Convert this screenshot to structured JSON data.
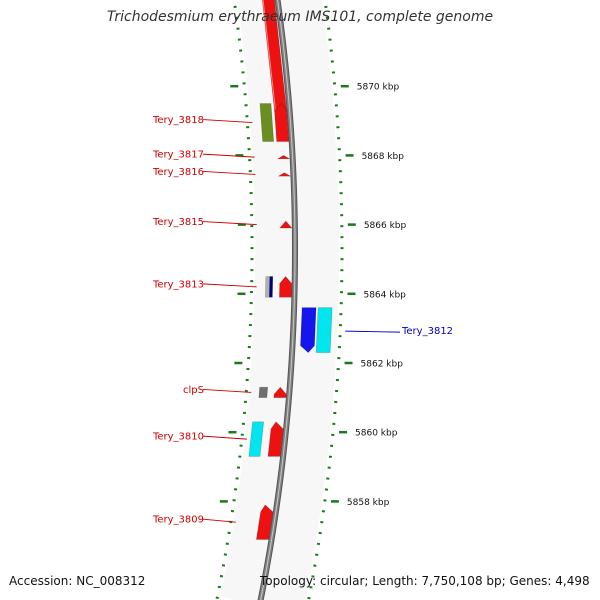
{
  "header": {
    "title": "Trichodesmium erythraeum IMS101, complete genome"
  },
  "footer": {
    "accession": "Accession: NC_008312",
    "summary": "Topology: circular; Length: 7,750,108 bp; Genes: 4,498"
  },
  "colors": {
    "backbone": "#808080",
    "tick": "#1a7a1a",
    "cds": "#ee1111",
    "label_left": "#cc0000",
    "label_right": "#0000cc",
    "cog_green": "#6b8e23",
    "cog_navy": "#000080",
    "cog_silver": "#b0b0b0",
    "cog_gray": "#707070",
    "cog_cyan": "#00e5ee",
    "cog_blue": "#1515ee"
  },
  "scale": {
    "ticks": [
      {
        "kbp": 5858,
        "label": "5858 kbp"
      },
      {
        "kbp": 5860,
        "label": "5860 kbp"
      },
      {
        "kbp": 5862,
        "label": "5862 kbp"
      },
      {
        "kbp": 5864,
        "label": "5864 kbp"
      },
      {
        "kbp": 5866,
        "label": "5866 kbp"
      },
      {
        "kbp": 5868,
        "label": "5868 kbp"
      },
      {
        "kbp": 5870,
        "label": "5870 kbp"
      }
    ]
  },
  "features": [
    {
      "name": "Tery_3809",
      "start_kbp": 5856.9,
      "end_kbp": 5857.9,
      "strand": "+",
      "cog": null
    },
    {
      "name": "Tery_3810",
      "start_kbp": 5859.3,
      "end_kbp": 5860.3,
      "strand": "+",
      "cog": "cyan"
    },
    {
      "name": "clpS",
      "start_kbp": 5861.0,
      "end_kbp": 5861.3,
      "strand": "+",
      "cog": "gray"
    },
    {
      "name": "Tery_3812",
      "start_kbp": 5862.3,
      "end_kbp": 5863.6,
      "strand": "-",
      "cog": "cyan-blue"
    },
    {
      "name": "Tery_3813",
      "start_kbp": 5863.9,
      "end_kbp": 5864.5,
      "strand": "+",
      "cog": "silver-navy"
    },
    {
      "name": "Tery_3815",
      "start_kbp": 5865.9,
      "end_kbp": 5866.1,
      "strand": "+",
      "cog": null
    },
    {
      "name": "Tery_3816",
      "start_kbp": 5867.4,
      "end_kbp": 5867.5,
      "strand": "+",
      "cog": null
    },
    {
      "name": "Tery_3817",
      "start_kbp": 5867.9,
      "end_kbp": 5868.0,
      "strand": "+",
      "cog": null
    },
    {
      "name": "Tery_3818",
      "start_kbp": 5868.4,
      "end_kbp": 5869.5,
      "strand": "+",
      "cog": "green"
    }
  ]
}
